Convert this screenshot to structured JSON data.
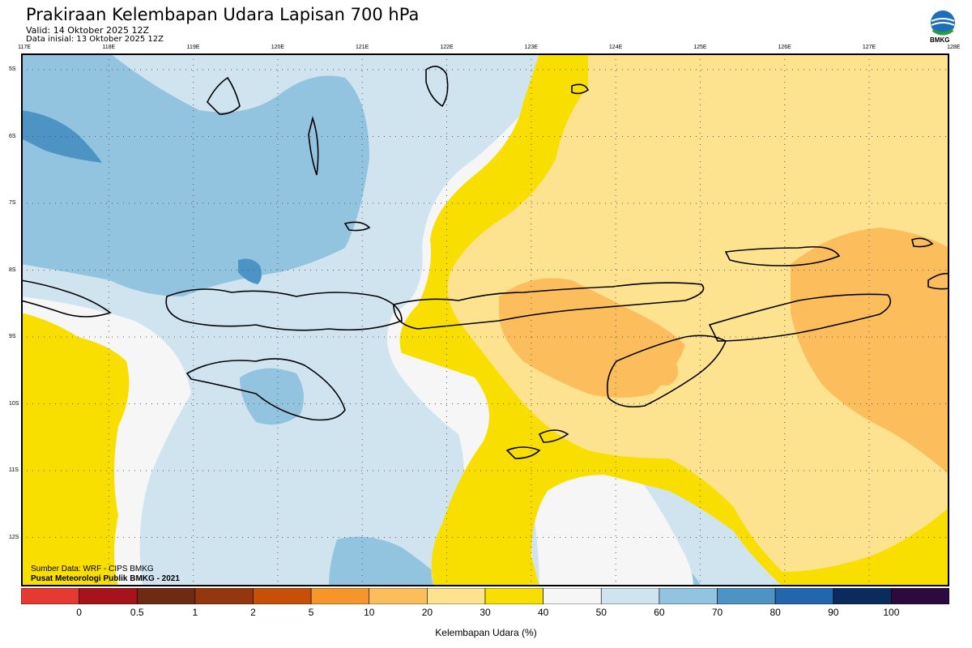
{
  "header": {
    "title": "Prakiraan Kelembapan Udara Lapisan 700 hPa",
    "valid": "Valid: 14 Oktober 2025 12Z",
    "initial": "Data inisial: 13 Oktober 2025 12Z",
    "logo_text": "BMKG"
  },
  "map": {
    "lon_labels": [
      "117E",
      "118E",
      "119E",
      "120E",
      "121E",
      "122E",
      "123E",
      "124E",
      "125E",
      "126E",
      "127E",
      "128E"
    ],
    "lat_labels": [
      "5S",
      "6S",
      "7S",
      "8S",
      "9S",
      "10S",
      "11S",
      "12S"
    ],
    "credit_source": "Sumber Data: WRF - CIPS BMKG",
    "credit_org": "Pusat Meteorologi Publik BMKG - 2021"
  },
  "colorbar": {
    "title": "Kelembapan Udara (%)",
    "labels": [
      "0",
      "0.5",
      "1",
      "2",
      "5",
      "10",
      "20",
      "30",
      "40",
      "50",
      "60",
      "70",
      "80",
      "90",
      "100"
    ],
    "colors": [
      "#e53a32",
      "#a8121a",
      "#6e2a12",
      "#94360e",
      "#c84f08",
      "#f6962a",
      "#fcbe5c",
      "#fde28f",
      "#f9df00",
      "#f6f6f6",
      "#d0e4f0",
      "#92c3df",
      "#4d94c4",
      "#2266ad",
      "#0a2b5c",
      "#2b0a40"
    ]
  }
}
